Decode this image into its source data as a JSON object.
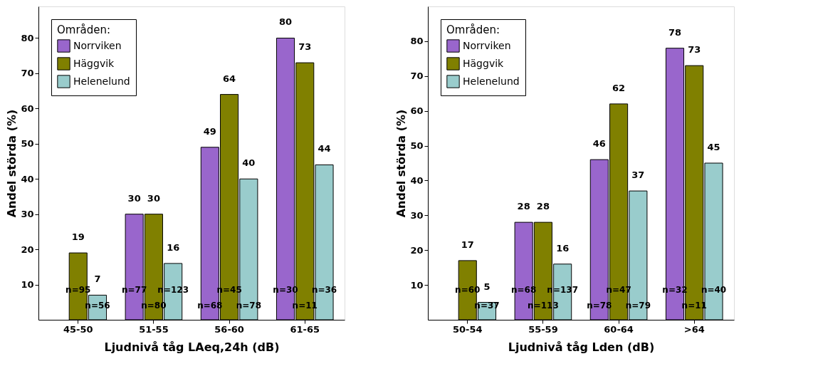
{
  "chart_data": [
    {
      "type": "bar",
      "xlabel": "Ljudnivå tåg LAeq,24h (dB)",
      "ylabel": "Andel störda (%)",
      "legend_title": "Områden:",
      "legend": "top left",
      "data_labels": true,
      "grid": false,
      "categories": [
        "45-50",
        "51-55",
        "56-60",
        "61-65"
      ],
      "ylim": [
        0,
        89
      ],
      "yticks": [
        10,
        20,
        30,
        40,
        50,
        60,
        70,
        80
      ],
      "series": [
        {
          "name": "Norrviken",
          "color": "#9966cc",
          "values": [
            null,
            30,
            49,
            80
          ]
        },
        {
          "name": "Häggvik",
          "color": "#808000",
          "values": [
            19,
            30,
            64,
            73
          ]
        },
        {
          "name": "Helenelund",
          "color": "#99cccc",
          "values": [
            7,
            16,
            40,
            44
          ]
        }
      ],
      "annotations": [
        "n=95",
        "n=56",
        "n=77",
        "n=80",
        "n=123",
        "n=68",
        "n=45",
        "n=78",
        "n=30",
        "n=11",
        "n=36"
      ]
    },
    {
      "type": "bar",
      "xlabel": "Ljudnivå tåg Lden (dB)",
      "ylabel": "Andel störda (%)",
      "legend_title": "Områden:",
      "legend": "top left",
      "data_labels": true,
      "grid": false,
      "categories": [
        "50-54",
        "55-59",
        "60-64",
        ">64"
      ],
      "ylim": [
        0,
        90
      ],
      "yticks": [
        10,
        20,
        30,
        40,
        50,
        60,
        70,
        80
      ],
      "series": [
        {
          "name": "Norrviken",
          "color": "#9966cc",
          "values": [
            null,
            28,
            46,
            78
          ]
        },
        {
          "name": "Häggvik",
          "color": "#808000",
          "values": [
            17,
            28,
            62,
            73
          ]
        },
        {
          "name": "Helenelund",
          "color": "#99cccc",
          "values": [
            5,
            16,
            37,
            45
          ]
        }
      ],
      "annotations": [
        "n=60",
        "n=37",
        "n=68",
        "n=113",
        "n=137",
        "n=78",
        "n=47",
        "n=79",
        "n=32",
        "n=11",
        "n=40"
      ]
    }
  ]
}
